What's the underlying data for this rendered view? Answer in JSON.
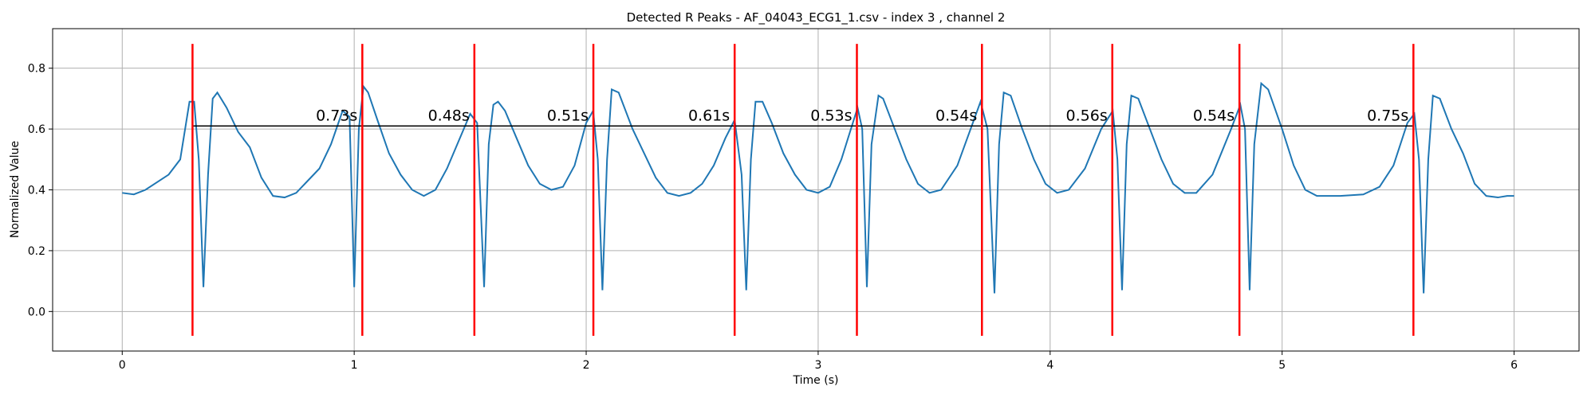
{
  "chart_data": {
    "type": "line",
    "title": "Detected R Peaks - AF_04043_ECG1_1.csv - index 3 , channel 2",
    "xlabel": "Time (s)",
    "ylabel": "Normalized Value",
    "xlim": [
      -0.3,
      6.28
    ],
    "ylim": [
      -0.13,
      0.93
    ],
    "xticks": [
      0,
      1,
      2,
      3,
      4,
      5,
      6
    ],
    "yticks": [
      {
        "value": 0,
        "label": "0.0"
      },
      0.2,
      0.4,
      0.6,
      0.8
    ],
    "grid": true,
    "series": [
      {
        "color": "#1f77b4",
        "x": [
          0,
          0.05,
          0.1,
          0.2,
          0.25,
          0.29,
          0.31,
          0.33,
          0.35,
          0.37,
          0.39,
          0.41,
          0.45,
          0.5,
          0.55,
          0.6,
          0.65,
          0.7,
          0.75,
          0.85,
          0.9,
          0.95,
          0.98,
          1.0,
          1.02,
          1.04,
          1.06,
          1.1,
          1.15,
          1.2,
          1.25,
          1.3,
          1.35,
          1.4,
          1.45,
          1.5,
          1.53,
          1.56,
          1.58,
          1.6,
          1.62,
          1.65,
          1.7,
          1.75,
          1.8,
          1.85,
          1.9,
          1.95,
          2.0,
          2.03,
          2.05,
          2.07,
          2.09,
          2.11,
          2.14,
          2.2,
          2.25,
          2.3,
          2.35,
          2.4,
          2.45,
          2.5,
          2.55,
          2.6,
          2.64,
          2.67,
          2.69,
          2.71,
          2.73,
          2.76,
          2.8,
          2.85,
          2.9,
          2.95,
          3.0,
          3.05,
          3.1,
          3.17,
          3.19,
          3.21,
          3.23,
          3.26,
          3.28,
          3.33,
          3.38,
          3.43,
          3.48,
          3.53,
          3.6,
          3.7,
          3.73,
          3.76,
          3.78,
          3.8,
          3.83,
          3.88,
          3.93,
          3.98,
          4.03,
          4.08,
          4.15,
          4.22,
          4.27,
          4.29,
          4.31,
          4.33,
          4.35,
          4.38,
          4.43,
          4.48,
          4.53,
          4.58,
          4.63,
          4.7,
          4.78,
          4.82,
          4.84,
          4.86,
          4.88,
          4.91,
          4.94,
          5.0,
          5.05,
          5.1,
          5.15,
          5.25,
          5.35,
          5.42,
          5.48,
          5.54,
          5.57,
          5.59,
          5.61,
          5.63,
          5.65,
          5.68,
          5.73,
          5.78,
          5.83,
          5.88,
          5.93,
          5.97,
          6.0
        ],
        "values": [
          0.39,
          0.385,
          0.4,
          0.45,
          0.5,
          0.69,
          0.69,
          0.5,
          0.08,
          0.45,
          0.7,
          0.72,
          0.67,
          0.59,
          0.54,
          0.44,
          0.38,
          0.375,
          0.39,
          0.47,
          0.55,
          0.66,
          0.64,
          0.08,
          0.6,
          0.74,
          0.72,
          0.63,
          0.52,
          0.45,
          0.4,
          0.38,
          0.4,
          0.47,
          0.56,
          0.65,
          0.62,
          0.08,
          0.55,
          0.68,
          0.69,
          0.66,
          0.57,
          0.48,
          0.42,
          0.4,
          0.41,
          0.48,
          0.62,
          0.66,
          0.5,
          0.07,
          0.5,
          0.73,
          0.72,
          0.6,
          0.52,
          0.44,
          0.39,
          0.38,
          0.39,
          0.42,
          0.48,
          0.57,
          0.63,
          0.45,
          0.07,
          0.5,
          0.69,
          0.69,
          0.62,
          0.52,
          0.45,
          0.4,
          0.39,
          0.41,
          0.5,
          0.67,
          0.6,
          0.08,
          0.55,
          0.71,
          0.7,
          0.6,
          0.5,
          0.42,
          0.39,
          0.4,
          0.48,
          0.69,
          0.6,
          0.06,
          0.55,
          0.72,
          0.71,
          0.6,
          0.5,
          0.42,
          0.39,
          0.4,
          0.47,
          0.6,
          0.66,
          0.5,
          0.07,
          0.55,
          0.71,
          0.7,
          0.6,
          0.5,
          0.42,
          0.39,
          0.39,
          0.45,
          0.6,
          0.68,
          0.6,
          0.07,
          0.55,
          0.75,
          0.73,
          0.6,
          0.48,
          0.4,
          0.38,
          0.38,
          0.385,
          0.41,
          0.48,
          0.62,
          0.65,
          0.5,
          0.06,
          0.5,
          0.71,
          0.7,
          0.6,
          0.52,
          0.42,
          0.38,
          0.375,
          0.38,
          0.38
        ]
      }
    ],
    "peaks": {
      "color": "red",
      "x": [
        0.303,
        1.035,
        1.518,
        2.031,
        2.64,
        3.167,
        3.706,
        4.268,
        4.816,
        5.566
      ],
      "ymin": -0.08,
      "ymax": 0.88
    },
    "intervals": {
      "color": "black",
      "y": 0.61,
      "values": [
        0.73,
        0.48,
        0.51,
        0.61,
        0.53,
        0.54,
        0.56,
        0.54,
        0.75
      ],
      "value_labels": [
        "0.73s",
        "0.48s",
        "0.51s",
        "0.61s",
        "0.53s",
        "0.54s",
        "0.56s",
        "0.54s",
        "0.75s"
      ]
    }
  }
}
